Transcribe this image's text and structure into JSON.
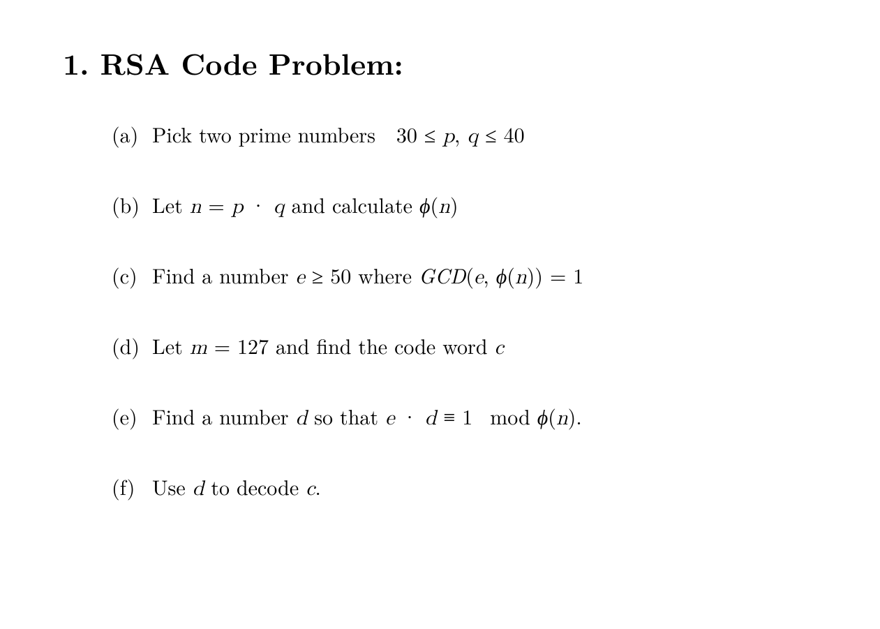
{
  "heading": {
    "number": "1.",
    "title": "RSA Code Problem:"
  },
  "items": [
    {
      "label": "(a)",
      "prefix": "Pick two prime numbers ",
      "math": "30 ≤ p, q ≤ 40"
    },
    {
      "label": "(b)",
      "prefix": "Let ",
      "math1": "n = p · q",
      "mid": " and calculate ",
      "math2": "ϕ(n)"
    },
    {
      "label": "(c)",
      "prefix": "Find a number ",
      "math1": "e ≥ 50",
      "mid": " where ",
      "math2": "GCD(e, ϕ(n)) = 1"
    },
    {
      "label": "(d)",
      "prefix": "Let ",
      "math1": "m = 127",
      "mid": " and find the code word ",
      "math2": "c"
    },
    {
      "label": "(e)",
      "prefix": "Find a number ",
      "math1": "d",
      "mid": " so that ",
      "math2": "e · d ≡ 1  mod ϕ(n).",
      "suffix": ""
    },
    {
      "label": "(f)",
      "prefix": "Use ",
      "math1": "d",
      "mid": " to decode ",
      "math2": "c",
      "suffix": "."
    }
  ],
  "style": {
    "background": "#ffffff",
    "text_color": "#000000",
    "heading_fontsize": 42,
    "body_fontsize": 30,
    "item_spacing": 56
  }
}
